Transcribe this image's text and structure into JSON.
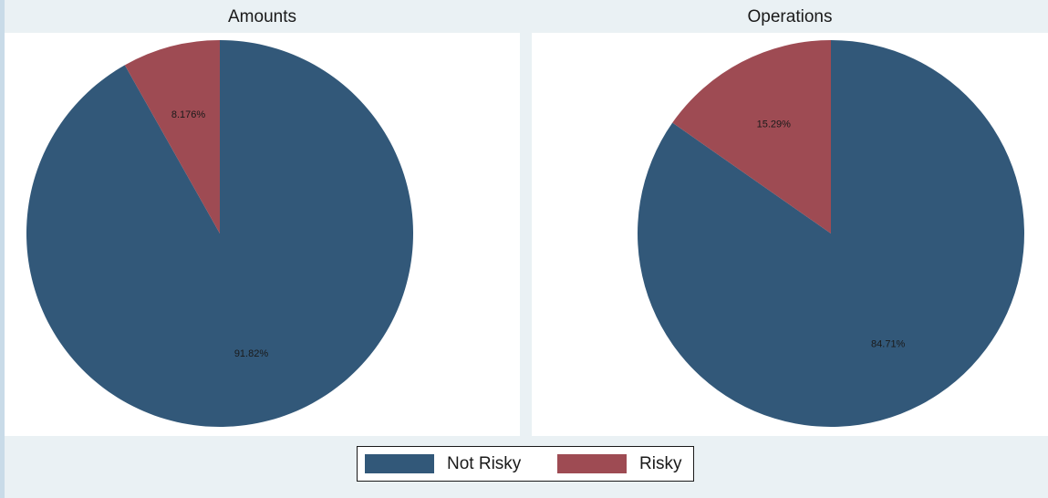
{
  "colors": {
    "not_risky": "#325879",
    "risky": "#9e4b53"
  },
  "legend": [
    {
      "label": "Not Risky",
      "color": "#325879"
    },
    {
      "label": "Risky",
      "color": "#9e4b53"
    }
  ],
  "chart_data": [
    {
      "type": "pie",
      "title": "Amounts",
      "slices": [
        {
          "label": "Not Risky",
          "value": 91.82,
          "display": "91.82%",
          "color": "#325879"
        },
        {
          "label": "Risky",
          "value": 8.176,
          "display": "8.176%",
          "color": "#9e4b53"
        }
      ],
      "legend_position": "bottom"
    },
    {
      "type": "pie",
      "title": "Operations",
      "slices": [
        {
          "label": "Not Risky",
          "value": 84.71,
          "display": "84.71%",
          "color": "#325879"
        },
        {
          "label": "Risky",
          "value": 15.29,
          "display": "15.29%",
          "color": "#9e4b53"
        }
      ],
      "legend_position": "bottom"
    }
  ]
}
